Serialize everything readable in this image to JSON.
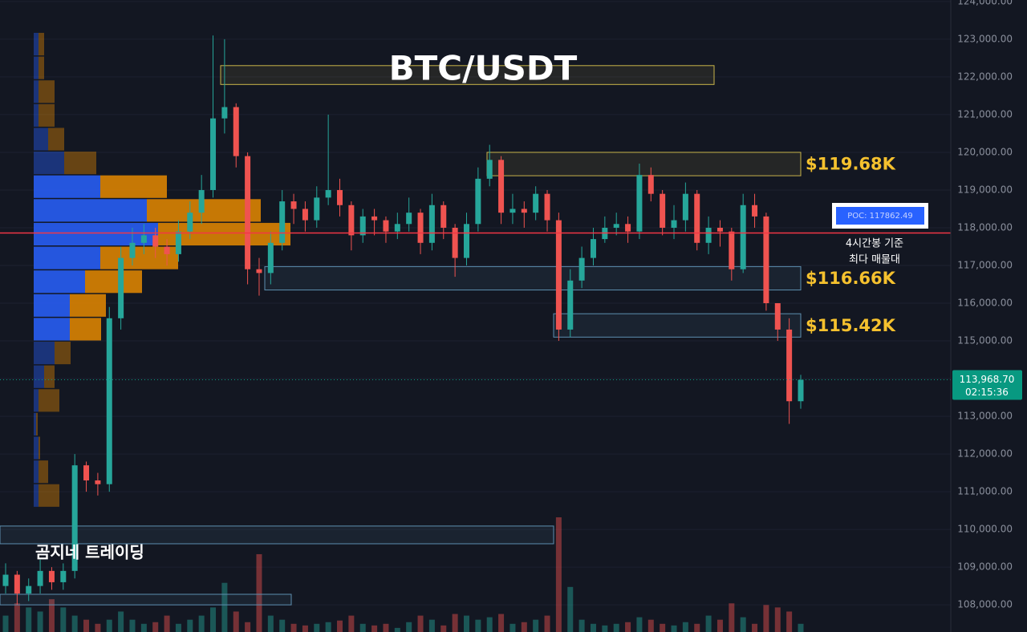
{
  "chart_data": {
    "type": "candlestick",
    "title": "BTC/USDT",
    "watermark": "곰지네 트레이딩",
    "ylim": [
      107280,
      124040
    ],
    "yticks": [
      {
        "value": 108000,
        "label": "108,000.00"
      },
      {
        "value": 109000,
        "label": "109,000.00"
      },
      {
        "value": 110000,
        "label": "110,000.00"
      },
      {
        "value": 111000,
        "label": "111,000.00"
      },
      {
        "value": 112000,
        "label": "112,000.00"
      },
      {
        "value": 113000,
        "label": "113,000.00"
      },
      {
        "value": 114000,
        "label": "114,000.00"
      },
      {
        "value": 115000,
        "label": "115,000.00"
      },
      {
        "value": 116000,
        "label": "116,000.00"
      },
      {
        "value": 117000,
        "label": "117,000.00"
      },
      {
        "value": 118000,
        "label": "118,000.00"
      },
      {
        "value": 119000,
        "label": "119,000.00"
      },
      {
        "value": 120000,
        "label": "120,000.00"
      },
      {
        "value": 121000,
        "label": "121,000.00"
      },
      {
        "value": 122000,
        "label": "122,000.00"
      },
      {
        "value": 123000,
        "label": "123,000.00"
      },
      {
        "value": 124000,
        "label": "124,000.00"
      }
    ],
    "grid": true,
    "up_color": "#26a69a",
    "down_color": "#ef5350",
    "open": [
      108500,
      108800,
      108300,
      108500,
      108900,
      108600,
      108900,
      111700,
      111300,
      111200,
      115600,
      117200,
      117600,
      117800,
      117500,
      117300,
      117900,
      118400,
      119000,
      120900,
      121200,
      119900,
      116900,
      116800,
      117600,
      118700,
      118500,
      118200,
      118800,
      119000,
      118600,
      117800,
      118300,
      118200,
      117900,
      118100,
      118400,
      117600,
      118600,
      118000,
      117200,
      118100,
      119300,
      119800,
      118400,
      118500,
      118400,
      118900,
      118200,
      115300,
      116600,
      117200,
      117700,
      118000,
      118100,
      117900,
      119400,
      118900,
      118000,
      118200,
      118900,
      117600,
      118000,
      117900,
      116900,
      118600,
      118300,
      116000,
      115300,
      113400
    ],
    "high": [
      109100,
      108900,
      108700,
      109200,
      109000,
      109100,
      112000,
      111800,
      111500,
      115900,
      117500,
      118000,
      118100,
      118000,
      117700,
      118200,
      118700,
      119400,
      123100,
      123000,
      121300,
      120000,
      117200,
      117900,
      119000,
      118900,
      118700,
      119100,
      121000,
      119300,
      118700,
      118500,
      118500,
      118300,
      118400,
      118800,
      118500,
      118900,
      118700,
      118100,
      118400,
      119600,
      120200,
      119900,
      118900,
      118700,
      119100,
      119000,
      118400,
      116900,
      117500,
      118000,
      118300,
      118400,
      118300,
      119700,
      119600,
      119000,
      118600,
      119200,
      119000,
      118300,
      118200,
      118000,
      118900,
      118900,
      118400,
      116000,
      115600,
      114100
    ],
    "low": [
      108300,
      108000,
      108100,
      108300,
      108400,
      108400,
      108700,
      111000,
      110900,
      111000,
      115300,
      117000,
      117300,
      117200,
      117000,
      117100,
      117700,
      118100,
      118800,
      120500,
      119600,
      116500,
      116200,
      116500,
      117400,
      118100,
      117900,
      118000,
      118600,
      118300,
      117400,
      117600,
      117800,
      117600,
      117700,
      117900,
      117300,
      117400,
      117700,
      116700,
      117000,
      117900,
      119100,
      118100,
      118100,
      118000,
      118200,
      117900,
      115000,
      115100,
      116400,
      117000,
      117600,
      117800,
      117600,
      117700,
      118700,
      117800,
      117700,
      117900,
      117400,
      117300,
      117500,
      116600,
      116800,
      118000,
      115800,
      115000,
      112800,
      113200
    ],
    "close": [
      108800,
      108300,
      108500,
      108900,
      108600,
      108900,
      111700,
      111300,
      111200,
      115600,
      117200,
      117600,
      117800,
      117500,
      117300,
      117900,
      118400,
      119000,
      120900,
      121200,
      119900,
      116900,
      116800,
      117600,
      118700,
      118500,
      118200,
      118800,
      119000,
      118600,
      117800,
      118300,
      118200,
      117900,
      118100,
      118400,
      117600,
      118600,
      118000,
      117200,
      118100,
      119300,
      119800,
      118400,
      118500,
      118400,
      118900,
      118200,
      115300,
      116600,
      117200,
      117700,
      118000,
      118100,
      117900,
      119400,
      118900,
      118000,
      118200,
      118900,
      117600,
      118000,
      117900,
      116900,
      118600,
      118300,
      116000,
      115300,
      113400,
      113968.7
    ],
    "volume": [
      20,
      35,
      30,
      25,
      40,
      30,
      20,
      15,
      10,
      15,
      25,
      15,
      10,
      12,
      20,
      10,
      15,
      20,
      30,
      60,
      25,
      12,
      95,
      20,
      15,
      10,
      8,
      10,
      12,
      14,
      20,
      10,
      8,
      10,
      5,
      12,
      20,
      15,
      8,
      22,
      20,
      15,
      18,
      22,
      10,
      12,
      15,
      20,
      140,
      55,
      15,
      10,
      8,
      10,
      12,
      18,
      15,
      10,
      8,
      12,
      10,
      20,
      15,
      35,
      18,
      10,
      33,
      30,
      25,
      10
    ],
    "profile": {
      "levels": [
        122870,
        122240,
        121610,
        120980,
        120350,
        119720,
        119090,
        118460,
        117830,
        117200,
        116570,
        115940,
        115310,
        114680,
        114050,
        113420,
        112790,
        112160,
        111530,
        110900
      ],
      "buy": [
        6,
        6,
        6,
        6,
        18,
        38,
        83,
        141,
        155,
        83,
        64,
        45,
        45,
        26,
        13,
        6,
        3,
        6,
        6,
        6
      ],
      "sell": [
        7,
        7,
        20,
        20,
        20,
        40,
        83,
        142,
        165,
        97,
        71,
        45,
        39,
        20,
        13,
        26,
        2,
        2,
        12,
        26
      ],
      "buy_color": "#2962ff",
      "sell_color": "#e68a00"
    },
    "zones": [
      {
        "low": 121800,
        "high": 122300,
        "color": "#c9b44a"
      },
      {
        "low": 119380,
        "high": 120000,
        "color": "#c9b44a",
        "label": "$119.68K"
      },
      {
        "low": 116350,
        "high": 116970,
        "color": "#5d8fb0",
        "label": "$116.66K"
      },
      {
        "low": 115100,
        "high": 115720,
        "color": "#5d8fb0",
        "label": "$115.42K"
      },
      {
        "low": 109620,
        "high": 110090,
        "color": "#5d8fb0"
      },
      {
        "low": 108000,
        "high": 108280,
        "color": "#5d8fb0"
      }
    ],
    "poc": {
      "value": 117862.49,
      "label": "POC: 117862.49",
      "color": "#f23645",
      "note": [
        "4시간봉 기준",
        "최다 매물대"
      ]
    },
    "last_price": {
      "value": 113968.7,
      "label": "113,968.70",
      "countdown": "02:15:36",
      "color": "#089981"
    }
  }
}
